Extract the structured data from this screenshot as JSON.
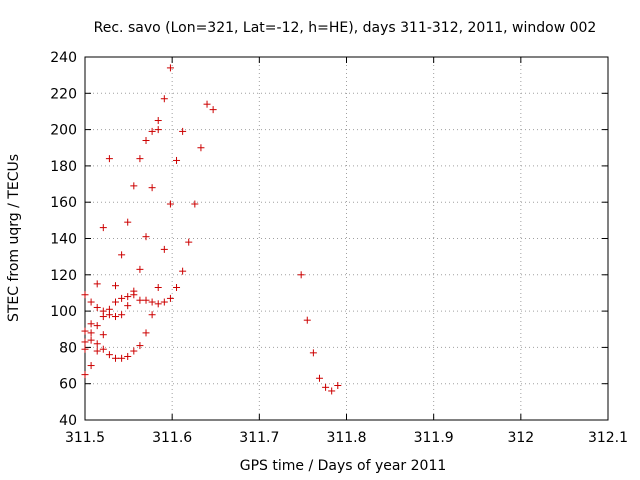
{
  "chart_data": {
    "type": "scatter",
    "title": "Rec. savo (Lon=321, Lat=-12, h=HE), days 311-312, 2011, window 002",
    "xlabel": "GPS time / Days of year 2011",
    "ylabel": "STEC from uqrg / TECUs",
    "xlim": [
      311.5,
      312.1
    ],
    "ylim": [
      40,
      240
    ],
    "xticks": [
      311.5,
      311.6,
      311.7,
      311.8,
      311.9,
      312,
      312.1
    ],
    "xtick_labels": [
      "311.5",
      "311.6",
      "311.7",
      "311.8",
      "311.9",
      "312",
      "312.1"
    ],
    "yticks": [
      40,
      60,
      80,
      100,
      120,
      140,
      160,
      180,
      200,
      220,
      240
    ],
    "ytick_labels": [
      "40",
      "60",
      "80",
      "100",
      "120",
      "140",
      "160",
      "180",
      "200",
      "220",
      "240"
    ],
    "grid": true,
    "marker": "plus",
    "color": "#cc0000",
    "series": [
      {
        "name": "STEC",
        "points": [
          [
            311.5,
            109
          ],
          [
            311.5,
            89
          ],
          [
            311.5,
            83
          ],
          [
            311.5,
            79
          ],
          [
            311.5,
            65
          ],
          [
            311.507,
            105
          ],
          [
            311.507,
            93
          ],
          [
            311.507,
            88
          ],
          [
            311.507,
            84
          ],
          [
            311.507,
            70
          ],
          [
            311.514,
            115
          ],
          [
            311.514,
            102
          ],
          [
            311.514,
            92
          ],
          [
            311.514,
            82
          ],
          [
            311.514,
            78
          ],
          [
            311.521,
            146
          ],
          [
            311.521,
            100
          ],
          [
            311.521,
            97
          ],
          [
            311.521,
            87
          ],
          [
            311.521,
            79
          ],
          [
            311.528,
            184
          ],
          [
            311.528,
            101
          ],
          [
            311.528,
            98
          ],
          [
            311.528,
            76
          ],
          [
            311.535,
            114
          ],
          [
            311.535,
            105
          ],
          [
            311.535,
            97
          ],
          [
            311.535,
            74
          ],
          [
            311.542,
            131
          ],
          [
            311.542,
            107
          ],
          [
            311.542,
            98
          ],
          [
            311.542,
            74
          ],
          [
            311.549,
            149
          ],
          [
            311.549,
            108
          ],
          [
            311.549,
            103
          ],
          [
            311.549,
            75
          ],
          [
            311.556,
            169
          ],
          [
            311.556,
            111
          ],
          [
            311.556,
            109
          ],
          [
            311.556,
            78
          ],
          [
            311.563,
            184
          ],
          [
            311.563,
            123
          ],
          [
            311.563,
            106
          ],
          [
            311.563,
            81
          ],
          [
            311.57,
            194
          ],
          [
            311.57,
            141
          ],
          [
            311.57,
            106
          ],
          [
            311.57,
            88
          ],
          [
            311.577,
            199
          ],
          [
            311.577,
            168
          ],
          [
            311.577,
            105
          ],
          [
            311.577,
            98
          ],
          [
            311.584,
            205
          ],
          [
            311.584,
            200
          ],
          [
            311.584,
            113
          ],
          [
            311.584,
            104
          ],
          [
            311.591,
            217
          ],
          [
            311.591,
            134
          ],
          [
            311.591,
            105
          ],
          [
            311.598,
            234
          ],
          [
            311.598,
            159
          ],
          [
            311.598,
            107
          ],
          [
            311.605,
            183
          ],
          [
            311.605,
            113
          ],
          [
            311.612,
            199
          ],
          [
            311.612,
            122
          ],
          [
            311.619,
            138
          ],
          [
            311.626,
            159
          ],
          [
            311.633,
            190
          ],
          [
            311.64,
            214
          ],
          [
            311.647,
            211
          ],
          [
            311.748,
            120
          ],
          [
            311.755,
            95
          ],
          [
            311.762,
            77
          ],
          [
            311.769,
            63
          ],
          [
            311.776,
            58
          ],
          [
            311.783,
            56
          ],
          [
            311.79,
            59
          ]
        ]
      }
    ]
  }
}
